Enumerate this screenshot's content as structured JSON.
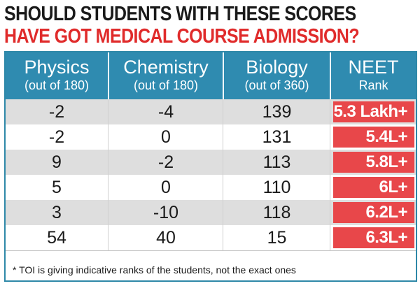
{
  "headline": {
    "line1": "SHOULD STUDENTS WITH THESE SCORES",
    "line2": "HAVE GOT MEDICAL COURSE ADMISSION?"
  },
  "colors": {
    "header_bg": "#2f8bb0",
    "rank_bg": "#e8474a",
    "headline_red": "#e02b2b",
    "row_alt": "#dedede"
  },
  "chart_data": {
    "type": "table",
    "columns": [
      {
        "title": "Physics",
        "subtitle": "(out of 180)"
      },
      {
        "title": "Chemistry",
        "subtitle": "(out of 180)"
      },
      {
        "title": "Biology",
        "subtitle": "(out of 360)"
      },
      {
        "title": "NEET",
        "subtitle": "Rank"
      }
    ],
    "rows": [
      {
        "physics": "-2",
        "chemistry": "-4",
        "biology": "139",
        "rank": "5.3 Lakh+"
      },
      {
        "physics": "-2",
        "chemistry": "0",
        "biology": "131",
        "rank": "5.4L+"
      },
      {
        "physics": "9",
        "chemistry": "-2",
        "biology": "113",
        "rank": "5.8L+"
      },
      {
        "physics": "5",
        "chemistry": "0",
        "biology": "110",
        "rank": "6L+"
      },
      {
        "physics": "3",
        "chemistry": "-10",
        "biology": "118",
        "rank": "6.2L+"
      },
      {
        "physics": "54",
        "chemistry": "40",
        "biology": "15",
        "rank": "6.3L+"
      }
    ]
  },
  "footnote": "* TOI is giving indicative ranks of the students, not the exact ones"
}
